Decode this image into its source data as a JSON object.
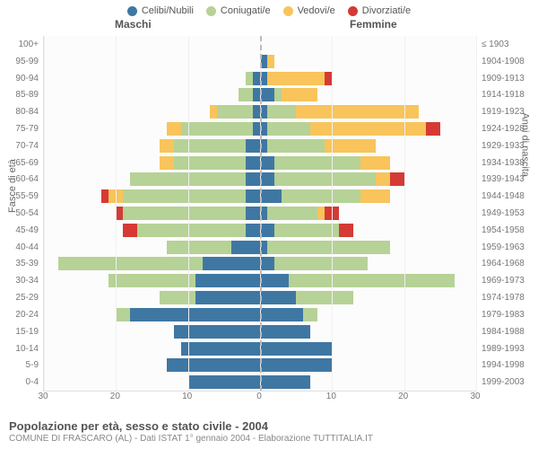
{
  "legend": [
    {
      "label": "Celibi/Nubili",
      "color": "#3f77a3"
    },
    {
      "label": "Coniugati/e",
      "color": "#b6d296"
    },
    {
      "label": "Vedovi/e",
      "color": "#f8c45b"
    },
    {
      "label": "Divorziati/e",
      "color": "#d53a35"
    }
  ],
  "header_left": "Maschi",
  "header_right": "Femmine",
  "axis_left_title": "Fasce di età",
  "axis_right_title": "Anni di nascita",
  "x_ticks": [
    30,
    20,
    10,
    0,
    10,
    20,
    30
  ],
  "x_max": 30,
  "title": "Popolazione per età, sesso e stato civile - 2004",
  "subtitle": "COMUNE DI FRASCARO (AL) - Dati ISTAT 1° gennaio 2004 - Elaborazione TUTTITALIA.IT",
  "colors": {
    "celibi": "#3f77a3",
    "coniugati": "#b6d296",
    "vedovi": "#f8c45b",
    "divorziati": "#d53a35",
    "grid": "#f0f0f0",
    "centerline": "#bbbbbb",
    "background": "#ffffff"
  },
  "rows": [
    {
      "age": "100+",
      "birth": "≤ 1903",
      "m": {
        "celibi": 0,
        "coniugati": 0,
        "vedovi": 0,
        "divorziati": 0
      },
      "f": {
        "celibi": 0,
        "coniugati": 0,
        "vedovi": 0,
        "divorziati": 0
      }
    },
    {
      "age": "95-99",
      "birth": "1904-1908",
      "m": {
        "celibi": 0,
        "coniugati": 0,
        "vedovi": 0,
        "divorziati": 0
      },
      "f": {
        "celibi": 1,
        "coniugati": 0,
        "vedovi": 1,
        "divorziati": 0
      }
    },
    {
      "age": "90-94",
      "birth": "1909-1913",
      "m": {
        "celibi": 1,
        "coniugati": 1,
        "vedovi": 0,
        "divorziati": 0
      },
      "f": {
        "celibi": 1,
        "coniugati": 0,
        "vedovi": 8,
        "divorziati": 1
      }
    },
    {
      "age": "85-89",
      "birth": "1914-1918",
      "m": {
        "celibi": 1,
        "coniugati": 2,
        "vedovi": 0,
        "divorziati": 0
      },
      "f": {
        "celibi": 2,
        "coniugati": 1,
        "vedovi": 5,
        "divorziati": 0
      }
    },
    {
      "age": "80-84",
      "birth": "1919-1923",
      "m": {
        "celibi": 1,
        "coniugati": 5,
        "vedovi": 1,
        "divorziati": 0
      },
      "f": {
        "celibi": 1,
        "coniugati": 4,
        "vedovi": 17,
        "divorziati": 0
      }
    },
    {
      "age": "75-79",
      "birth": "1924-1928",
      "m": {
        "celibi": 1,
        "coniugati": 10,
        "vedovi": 2,
        "divorziati": 0
      },
      "f": {
        "celibi": 1,
        "coniugati": 6,
        "vedovi": 16,
        "divorziati": 2
      }
    },
    {
      "age": "70-74",
      "birth": "1929-1933",
      "m": {
        "celibi": 2,
        "coniugati": 10,
        "vedovi": 2,
        "divorziati": 0
      },
      "f": {
        "celibi": 1,
        "coniugati": 8,
        "vedovi": 7,
        "divorziati": 0
      }
    },
    {
      "age": "65-69",
      "birth": "1934-1938",
      "m": {
        "celibi": 2,
        "coniugati": 10,
        "vedovi": 2,
        "divorziati": 0
      },
      "f": {
        "celibi": 2,
        "coniugati": 12,
        "vedovi": 4,
        "divorziati": 0
      }
    },
    {
      "age": "60-64",
      "birth": "1939-1943",
      "m": {
        "celibi": 2,
        "coniugati": 16,
        "vedovi": 0,
        "divorziati": 0
      },
      "f": {
        "celibi": 2,
        "coniugati": 14,
        "vedovi": 2,
        "divorziati": 2
      }
    },
    {
      "age": "55-59",
      "birth": "1944-1948",
      "m": {
        "celibi": 2,
        "coniugati": 17,
        "vedovi": 2,
        "divorziati": 1
      },
      "f": {
        "celibi": 3,
        "coniugati": 11,
        "vedovi": 4,
        "divorziati": 0
      }
    },
    {
      "age": "50-54",
      "birth": "1949-1953",
      "m": {
        "celibi": 2,
        "coniugati": 17,
        "vedovi": 0,
        "divorziati": 1
      },
      "f": {
        "celibi": 1,
        "coniugati": 7,
        "vedovi": 1,
        "divorziati": 2
      }
    },
    {
      "age": "45-49",
      "birth": "1954-1958",
      "m": {
        "celibi": 2,
        "coniugati": 15,
        "vedovi": 0,
        "divorziati": 2
      },
      "f": {
        "celibi": 2,
        "coniugati": 9,
        "vedovi": 0,
        "divorziati": 2
      }
    },
    {
      "age": "40-44",
      "birth": "1959-1963",
      "m": {
        "celibi": 4,
        "coniugati": 9,
        "vedovi": 0,
        "divorziati": 0
      },
      "f": {
        "celibi": 1,
        "coniugati": 17,
        "vedovi": 0,
        "divorziati": 0
      }
    },
    {
      "age": "35-39",
      "birth": "1964-1968",
      "m": {
        "celibi": 8,
        "coniugati": 20,
        "vedovi": 0,
        "divorziati": 0
      },
      "f": {
        "celibi": 2,
        "coniugati": 13,
        "vedovi": 0,
        "divorziati": 0
      }
    },
    {
      "age": "30-34",
      "birth": "1969-1973",
      "m": {
        "celibi": 9,
        "coniugati": 12,
        "vedovi": 0,
        "divorziati": 0
      },
      "f": {
        "celibi": 4,
        "coniugati": 23,
        "vedovi": 0,
        "divorziati": 0
      }
    },
    {
      "age": "25-29",
      "birth": "1974-1978",
      "m": {
        "celibi": 9,
        "coniugati": 5,
        "vedovi": 0,
        "divorziati": 0
      },
      "f": {
        "celibi": 5,
        "coniugati": 8,
        "vedovi": 0,
        "divorziati": 0
      }
    },
    {
      "age": "20-24",
      "birth": "1979-1983",
      "m": {
        "celibi": 18,
        "coniugati": 2,
        "vedovi": 0,
        "divorziati": 0
      },
      "f": {
        "celibi": 6,
        "coniugati": 2,
        "vedovi": 0,
        "divorziati": 0
      }
    },
    {
      "age": "15-19",
      "birth": "1984-1988",
      "m": {
        "celibi": 12,
        "coniugati": 0,
        "vedovi": 0,
        "divorziati": 0
      },
      "f": {
        "celibi": 7,
        "coniugati": 0,
        "vedovi": 0,
        "divorziati": 0
      }
    },
    {
      "age": "10-14",
      "birth": "1989-1993",
      "m": {
        "celibi": 11,
        "coniugati": 0,
        "vedovi": 0,
        "divorziati": 0
      },
      "f": {
        "celibi": 10,
        "coniugati": 0,
        "vedovi": 0,
        "divorziati": 0
      }
    },
    {
      "age": "5-9",
      "birth": "1994-1998",
      "m": {
        "celibi": 13,
        "coniugati": 0,
        "vedovi": 0,
        "divorziati": 0
      },
      "f": {
        "celibi": 10,
        "coniugati": 0,
        "vedovi": 0,
        "divorziati": 0
      }
    },
    {
      "age": "0-4",
      "birth": "1999-2003",
      "m": {
        "celibi": 10,
        "coniugati": 0,
        "vedovi": 0,
        "divorziati": 0
      },
      "f": {
        "celibi": 7,
        "coniugati": 0,
        "vedovi": 0,
        "divorziati": 0
      }
    }
  ]
}
